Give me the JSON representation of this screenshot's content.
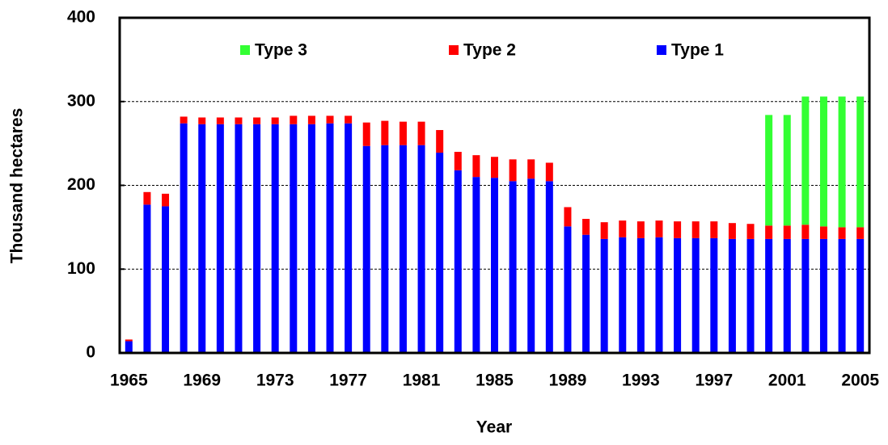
{
  "chart_data": {
    "type": "stacked_bar",
    "x_label": "Year",
    "y_label": "Thousand hectares",
    "categories": [
      "1965",
      null,
      null,
      null,
      "1969",
      null,
      null,
      null,
      "1973",
      null,
      null,
      null,
      "1977",
      null,
      null,
      null,
      "1981",
      null,
      null,
      null,
      "1985",
      null,
      null,
      null,
      "1989",
      null,
      null,
      null,
      "1993",
      null,
      null,
      null,
      "1997",
      null,
      null,
      null,
      "2001",
      null,
      null,
      null,
      "2005"
    ],
    "series": [
      {
        "name": "Type 1",
        "color": "#0000ff",
        "values": [
          14,
          177,
          175,
          274,
          273,
          273,
          273,
          273,
          273,
          273,
          273,
          274,
          274,
          247,
          248,
          248,
          248,
          239,
          218,
          210,
          209,
          205,
          208,
          205,
          151,
          141,
          136,
          138,
          137,
          138,
          137,
          137,
          137,
          136,
          136,
          136,
          136,
          136,
          136,
          136,
          136
        ]
      },
      {
        "name": "Type 2",
        "color": "#ff0000",
        "values": [
          2,
          15,
          15,
          8,
          8,
          8,
          8,
          8,
          8,
          10,
          10,
          9,
          9,
          28,
          29,
          28,
          28,
          27,
          22,
          26,
          25,
          26,
          23,
          22,
          23,
          19,
          20,
          20,
          20,
          20,
          20,
          20,
          20,
          19,
          18,
          16,
          16,
          17,
          15,
          14,
          14
        ]
      },
      {
        "name": "Type 3",
        "color": "#33ff33",
        "values": [
          null,
          null,
          null,
          null,
          null,
          null,
          null,
          null,
          null,
          null,
          null,
          null,
          null,
          null,
          null,
          null,
          null,
          null,
          null,
          null,
          null,
          null,
          null,
          null,
          null,
          null,
          null,
          null,
          null,
          null,
          null,
          null,
          null,
          null,
          null,
          132,
          132,
          153,
          155,
          156,
          156
        ]
      }
    ],
    "ylim": [
      0,
      400
    ],
    "yticks": [
      0,
      100,
      200,
      300,
      400
    ],
    "grid": true,
    "legend": "top"
  }
}
